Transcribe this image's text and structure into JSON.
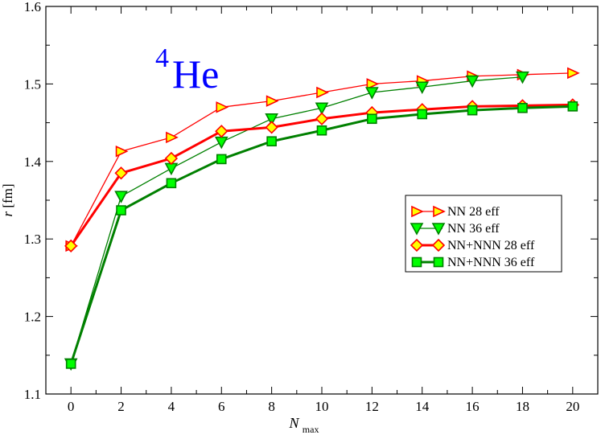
{
  "chart_data": {
    "type": "line",
    "x": [
      0,
      2,
      4,
      6,
      8,
      10,
      12,
      14,
      16,
      18,
      20
    ],
    "xlim": [
      -1,
      21
    ],
    "ylim": [
      1.1,
      1.6
    ],
    "xticks": [
      "0",
      "2",
      "4",
      "6",
      "8",
      "10",
      "12",
      "14",
      "16",
      "18",
      "20"
    ],
    "yticks": [
      "1.1",
      "1.2",
      "1.3",
      "1.4",
      "1.5",
      "1.6"
    ],
    "xlabel_main": "N",
    "xlabel_sub": "max",
    "ylabel_italic": "r",
    "ylabel_unit": " [fm]",
    "annotation_sup": "4",
    "annotation_text": "He",
    "legend_position": "center-right",
    "grid": false,
    "series": [
      {
        "name": "NN 28 eff",
        "marker": "triangle-right",
        "line_color": "#ff0000",
        "marker_fill": "#ffff00",
        "marker_edge": "#ff0000",
        "line_weight": "thin",
        "values": [
          1.291,
          1.413,
          1.431,
          1.47,
          1.478,
          1.489,
          1.5,
          1.504,
          1.51,
          1.512,
          1.514
        ]
      },
      {
        "name": "NN 36 eff",
        "marker": "triangle-down",
        "line_color": "#008000",
        "marker_fill": "#00ff00",
        "marker_edge": "#008000",
        "line_weight": "thin",
        "values": [
          1.139,
          1.355,
          1.391,
          1.425,
          1.455,
          1.469,
          1.489,
          1.496,
          1.504,
          1.509,
          null
        ]
      },
      {
        "name": "NN+NNN 28 eff",
        "marker": "diamond",
        "line_color": "#ff0000",
        "marker_fill": "#ffff00",
        "marker_edge": "#ff0000",
        "line_weight": "thick",
        "values": [
          1.291,
          1.385,
          1.404,
          1.439,
          1.444,
          1.455,
          1.463,
          1.467,
          1.471,
          1.472,
          1.473
        ]
      },
      {
        "name": "NN+NNN 36 eff",
        "marker": "square",
        "line_color": "#008000",
        "marker_fill": "#00ff00",
        "marker_edge": "#008000",
        "line_weight": "thick",
        "values": [
          1.139,
          1.337,
          1.372,
          1.403,
          1.426,
          1.44,
          1.455,
          1.461,
          1.466,
          1.469,
          1.471
        ]
      }
    ]
  }
}
